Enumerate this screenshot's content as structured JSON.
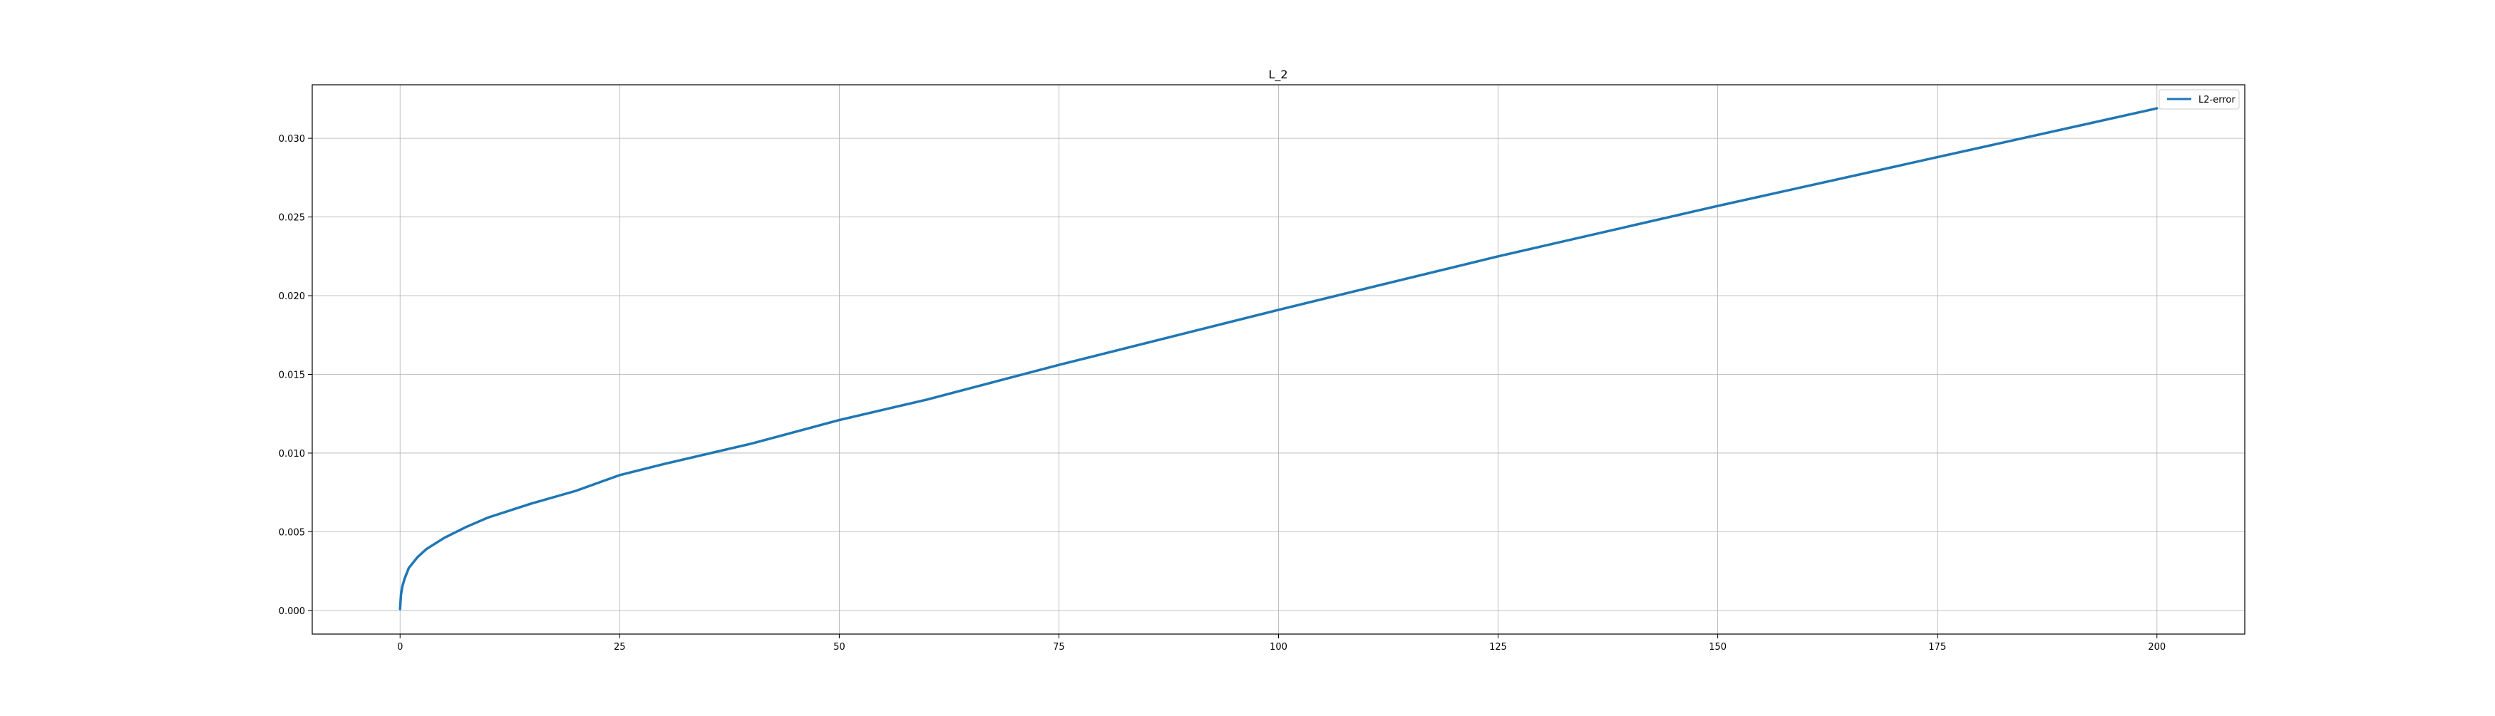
{
  "chart_data": {
    "type": "line",
    "title": "L_2",
    "xlabel": "",
    "ylabel": "",
    "xlim": [
      -10,
      210
    ],
    "ylim": [
      -0.0015,
      0.0334
    ],
    "grid": true,
    "legend_position": "top-right",
    "x_ticks": [
      0,
      25,
      50,
      75,
      100,
      125,
      150,
      175,
      200
    ],
    "x_tick_labels": [
      "0",
      "25",
      "50",
      "75",
      "100",
      "125",
      "150",
      "175",
      "200"
    ],
    "y_ticks": [
      0.0,
      0.005,
      0.01,
      0.015,
      0.02,
      0.025,
      0.03
    ],
    "y_tick_labels": [
      "0.000",
      "0.005",
      "0.010",
      "0.015",
      "0.020",
      "0.025",
      "0.030"
    ],
    "series": [
      {
        "name": "L2-error",
        "color": "#1f77b4",
        "x": [
          0,
          0.1,
          0.25,
          0.5,
          1,
          2,
          3,
          5,
          7.5,
          10,
          15,
          20,
          25,
          30,
          40,
          50,
          60,
          75,
          90,
          100,
          125,
          150,
          175,
          200
        ],
        "y": [
          0.0001,
          0.001,
          0.0015,
          0.002,
          0.0027,
          0.0034,
          0.0039,
          0.0046,
          0.0053,
          0.0059,
          0.0068,
          0.0076,
          0.0086,
          0.0093,
          0.0106,
          0.0121,
          0.0134,
          0.0156,
          0.0177,
          0.0191,
          0.0225,
          0.0257,
          0.0288,
          0.0319
        ]
      }
    ]
  }
}
